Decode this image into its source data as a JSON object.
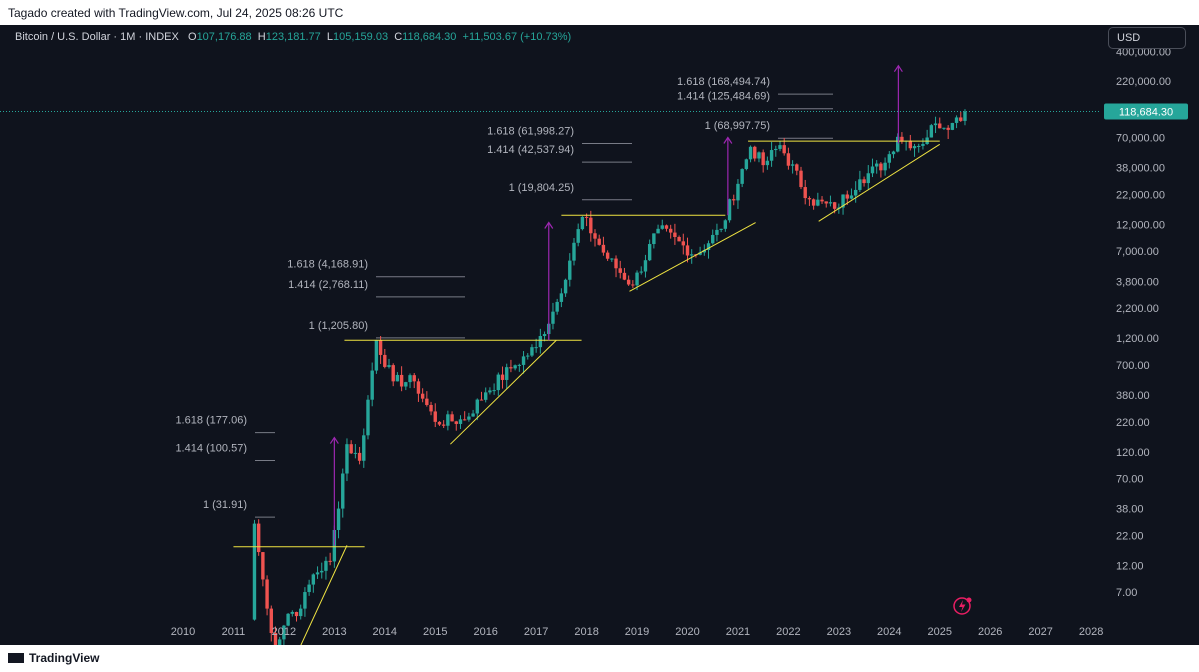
{
  "header": {
    "attribution": "Tagado created with TradingView.com, Jul 24, 2025 08:26 UTC"
  },
  "legend": {
    "symbol": "Bitcoin / U.S. Dollar · 1M · INDEX",
    "open_label": "O",
    "open": "107,176.88",
    "high_label": "H",
    "high": "123,181.77",
    "low_label": "L",
    "low": "105,159.03",
    "close_label": "C",
    "close": "118,684.30",
    "change": "+11,503.67 (+10.73%)"
  },
  "currency_button": "USD",
  "last_price_tag": "118,684.30",
  "footer": {
    "brand": "TradingView"
  },
  "colors": {
    "background": "#0f131d",
    "up": "#26a69a",
    "down": "#ef5350",
    "trendline": "#f0e442",
    "arrow": "#9c27b0",
    "fib_level": "#787b86",
    "last_price_line": "#26a69a"
  },
  "chart_data": {
    "type": "candlestick",
    "title": "Bitcoin / U.S. Dollar · 1M · INDEX",
    "x_ticks": [
      "2010",
      "2011",
      "2012",
      "2013",
      "2014",
      "2015",
      "2016",
      "2017",
      "2018",
      "2019",
      "2020",
      "2021",
      "2022",
      "2023",
      "2024",
      "2025",
      "2026",
      "2027",
      "2028"
    ],
    "y_scale": "log",
    "y_ticks": [
      "400,000.00",
      "220,000.00",
      "70,000.00",
      "38,000.00",
      "22,000.00",
      "12,000.00",
      "7,000.00",
      "3,800.00",
      "2,200.00",
      "1,200.00",
      "700.00",
      "380.00",
      "220.00",
      "120.00",
      "70.00",
      "38.00",
      "22.00",
      "12.00",
      "7.00"
    ],
    "last_price": 118684.3,
    "price_path": [
      [
        "2011-05",
        4
      ],
      [
        "2011-06",
        28
      ],
      [
        "2011-09",
        5
      ],
      [
        "2011-11",
        2.3
      ],
      [
        "2012-02",
        4.5
      ],
      [
        "2012-05",
        5
      ],
      [
        "2012-08",
        10
      ],
      [
        "2012-12",
        13
      ],
      [
        "2013-04",
        140
      ],
      [
        "2013-07",
        100
      ],
      [
        "2013-11",
        1150
      ],
      [
        "2014-03",
        500
      ],
      [
        "2014-08",
        500
      ],
      [
        "2015-01",
        220
      ],
      [
        "2015-08",
        230
      ],
      [
        "2016-01",
        400
      ],
      [
        "2016-07",
        650
      ],
      [
        "2017-01",
        1000
      ],
      [
        "2017-06",
        2500
      ],
      [
        "2017-12",
        14000
      ],
      [
        "2018-06",
        6000
      ],
      [
        "2018-12",
        3500
      ],
      [
        "2019-06",
        11000
      ],
      [
        "2020-03",
        6500
      ],
      [
        "2020-09",
        11000
      ],
      [
        "2021-04",
        58000
      ],
      [
        "2021-07",
        40000
      ],
      [
        "2021-11",
        60000
      ],
      [
        "2022-06",
        20000
      ],
      [
        "2022-12",
        16500
      ],
      [
        "2023-06",
        30000
      ],
      [
        "2023-12",
        42000
      ],
      [
        "2024-03",
        71000
      ],
      [
        "2024-08",
        59000
      ],
      [
        "2024-12",
        93000
      ],
      [
        "2025-04",
        94000
      ],
      [
        "2025-07",
        118684
      ]
    ],
    "fib_levels": [
      {
        "label": "1.618 (177.06)",
        "value": 177.06
      },
      {
        "label": "1.414 (100.57)",
        "value": 100.57
      },
      {
        "label": "1 (31.91)",
        "value": 31.91
      },
      {
        "label": "1.618 (4,168.91)",
        "value": 4168.91
      },
      {
        "label": "1.414 (2,768.11)",
        "value": 2768.11
      },
      {
        "label": "1 (1,205.80)",
        "value": 1205.8
      },
      {
        "label": "1.618 (61,998.27)",
        "value": 61998.27
      },
      {
        "label": "1.414 (42,537.94)",
        "value": 42537.94
      },
      {
        "label": "1 (19,804.25)",
        "value": 19804.25
      },
      {
        "label": "1.618 (168,494.74)",
        "value": 168494.74
      },
      {
        "label": "1.414 (125,484.69)",
        "value": 125484.69
      },
      {
        "label": "1 (68,997.75)",
        "value": 68997.75
      }
    ]
  }
}
